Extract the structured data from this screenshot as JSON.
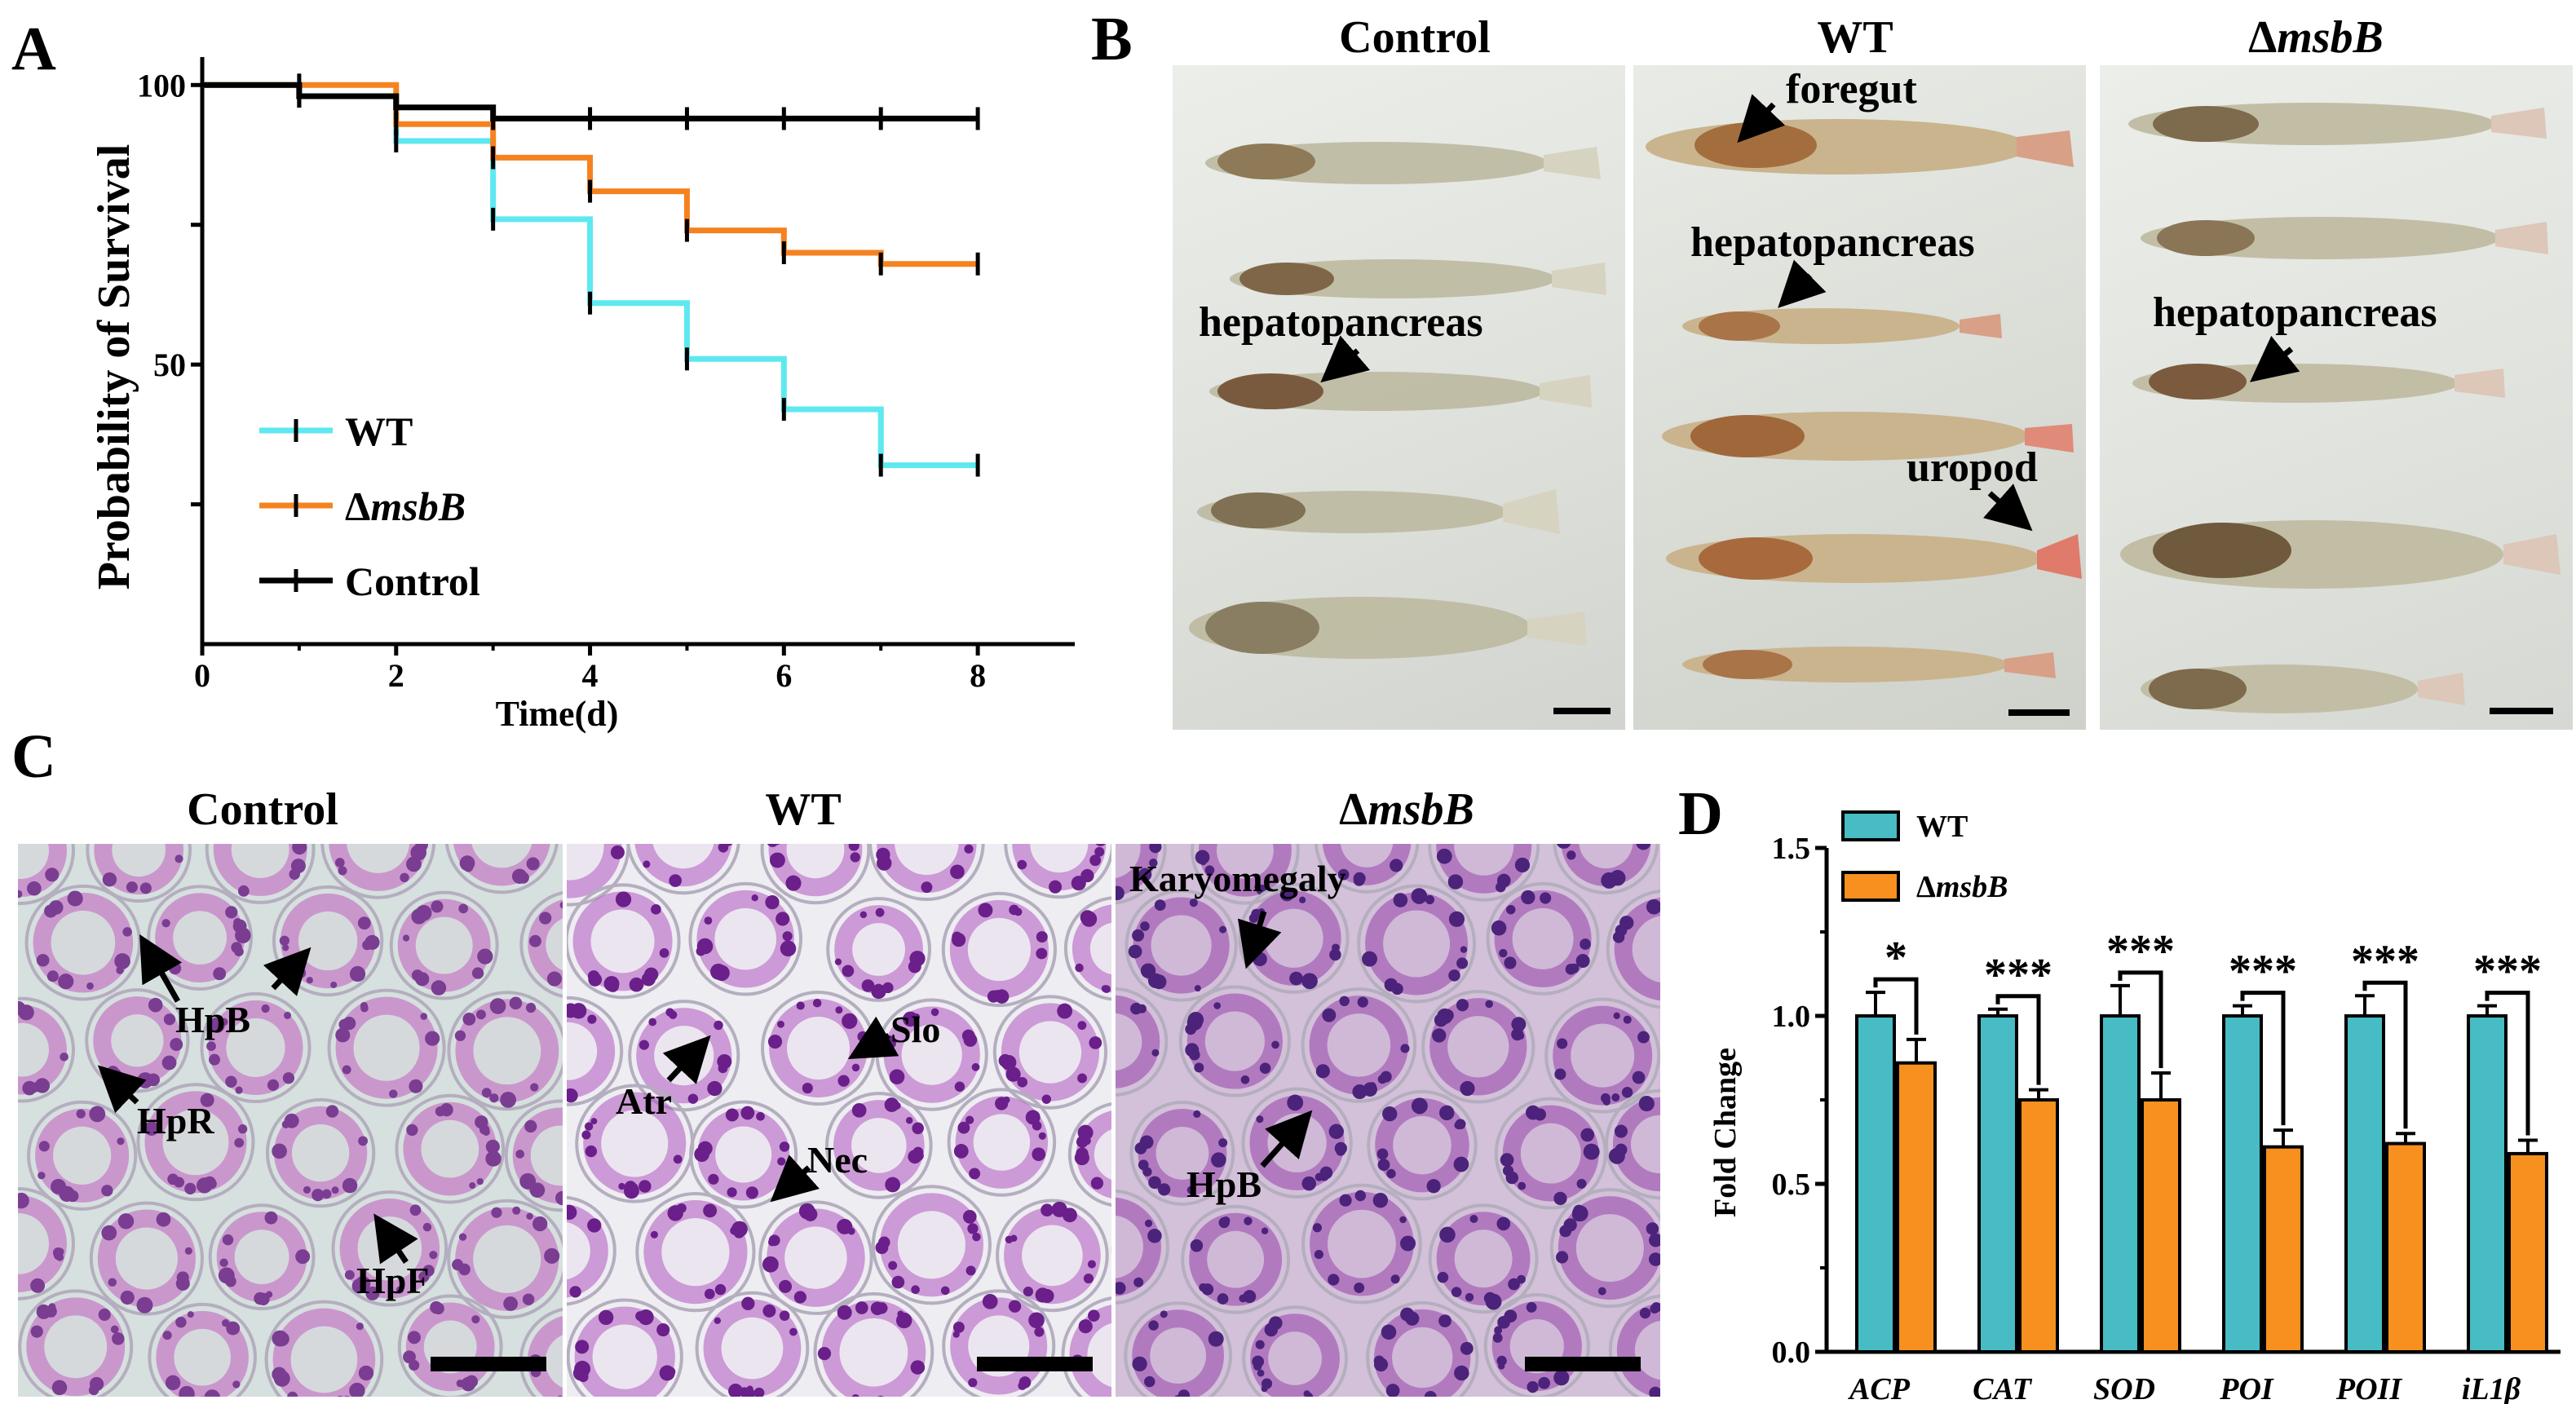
{
  "panel_labels": {
    "a": "A",
    "b": "B",
    "c": "C",
    "d": "D"
  },
  "colors": {
    "wt": "#5ee8f0",
    "msbb": "#f5821f",
    "control": "#000000",
    "bar_wt": "#47bcc4",
    "bar_msbb": "#f7901e"
  },
  "chart_data": [
    {
      "type": "line",
      "step": true,
      "title": "",
      "xlabel": "Time(d)",
      "ylabel": "Probability of Survival",
      "xlim": [
        0,
        9
      ],
      "ylim": [
        0,
        105
      ],
      "xticks": [
        0,
        2,
        4,
        6,
        8
      ],
      "yticks": [
        50,
        100
      ],
      "legend_position": "lower-left",
      "series": [
        {
          "name": "WT",
          "sup": "",
          "x": [
            0,
            1,
            2,
            3,
            4,
            5,
            6,
            7,
            8
          ],
          "y": [
            100,
            98,
            90,
            76,
            61,
            51,
            42,
            32,
            32
          ]
        },
        {
          "name": "msbB",
          "sup": "Δ",
          "x": [
            0,
            1,
            2,
            3,
            4,
            5,
            6,
            7,
            8
          ],
          "y": [
            100,
            100,
            93,
            87,
            81,
            74,
            70,
            68,
            68
          ]
        },
        {
          "name": "Control",
          "sup": "",
          "x": [
            0,
            1,
            2,
            3,
            4,
            5,
            6,
            7,
            8
          ],
          "y": [
            100,
            98,
            96,
            94,
            94,
            94,
            94,
            94,
            94
          ]
        }
      ]
    },
    {
      "type": "bar",
      "title": "",
      "xlabel": "",
      "ylabel": "Fold Change",
      "ylim": [
        0,
        1.5
      ],
      "yticks": [
        "0.0",
        "0.5",
        "1.0",
        "1.5"
      ],
      "legend_position": "top-left",
      "categories": [
        "ACP",
        "CAT",
        "SOD",
        "POI",
        "POII",
        "iL1β"
      ],
      "series": [
        {
          "name": "WT",
          "sup": "",
          "values": [
            1.0,
            1.0,
            1.0,
            1.0,
            1.0,
            1.0
          ],
          "errors": [
            0.07,
            0.02,
            0.09,
            0.03,
            0.06,
            0.03
          ]
        },
        {
          "name": "msbB",
          "sup": "Δ",
          "values": [
            0.86,
            0.75,
            0.75,
            0.61,
            0.62,
            0.59
          ],
          "errors": [
            0.07,
            0.03,
            0.08,
            0.05,
            0.03,
            0.04
          ]
        }
      ],
      "significance": [
        "*",
        "***",
        "***",
        "***",
        "***",
        "***"
      ]
    }
  ],
  "panel_b": {
    "titles": {
      "control": "Control",
      "wt": "WT",
      "msbb_prefix": "Δ",
      "msbb_name": "msbB"
    },
    "labels": {
      "foregut": "foregut",
      "hp_wt": "hepatopancreas",
      "hp_control": "hepatopancreas",
      "hp_msbb": "hepatopancreas",
      "uropod": "uropod"
    }
  },
  "panel_c": {
    "titles": {
      "control": "Control",
      "wt": "WT",
      "msbb_prefix": "Δ",
      "msbb_name": "msbB"
    },
    "labels": {
      "hpb": "HpB",
      "hpr": "HpR",
      "hpf": "HpF",
      "atr": "Atr",
      "slo": "Slo",
      "nec": "Nec",
      "karyo": "Karyomegaly",
      "hpb2": "HpB"
    }
  }
}
